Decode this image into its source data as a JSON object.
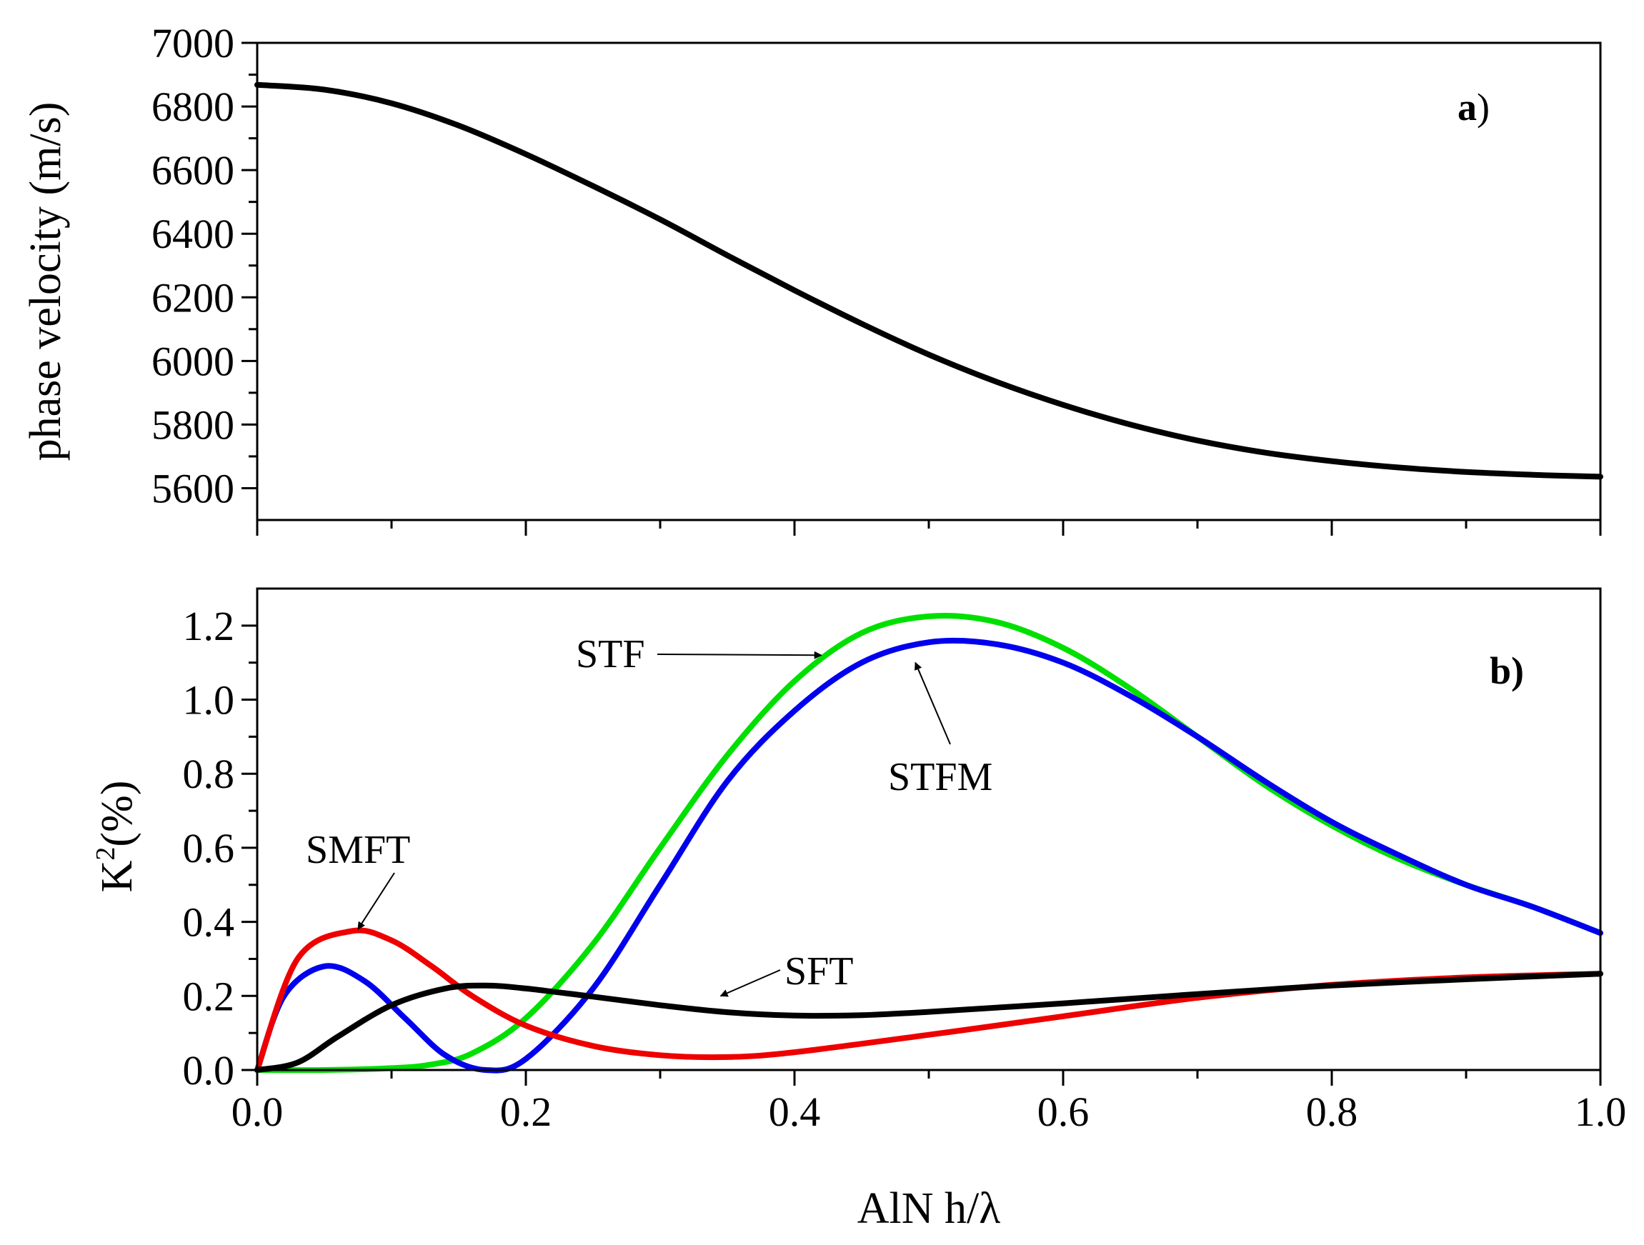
{
  "chart_data": [
    {
      "type": "line",
      "panel_label": "a",
      "panel_label_suffix": ")",
      "xlabel": "",
      "ylabel": "phase velocity (m/s)",
      "xlim": [
        0,
        1.0
      ],
      "ylim": [
        5500,
        7000
      ],
      "xticks": [
        0.0,
        0.2,
        0.4,
        0.6,
        0.8,
        1.0
      ],
      "show_x_tick_labels": false,
      "yticks": [
        5600,
        5800,
        6000,
        6200,
        6400,
        6600,
        6800,
        7000
      ],
      "y_tick_labels": [
        "5600",
        "5800",
        "6000",
        "6200",
        "6400",
        "6600",
        "6800",
        "7000"
      ],
      "series": [
        {
          "name": "phase velocity",
          "color": "#000000",
          "x": [
            0,
            0.05,
            0.1,
            0.15,
            0.2,
            0.25,
            0.3,
            0.35,
            0.4,
            0.45,
            0.5,
            0.55,
            0.6,
            0.65,
            0.7,
            0.75,
            0.8,
            0.85,
            0.9,
            0.95,
            1.0
          ],
          "y": [
            6868,
            6853,
            6810,
            6740,
            6650,
            6550,
            6445,
            6332,
            6222,
            6117,
            6020,
            5935,
            5862,
            5800,
            5750,
            5712,
            5685,
            5665,
            5651,
            5642,
            5636
          ]
        }
      ]
    },
    {
      "type": "line",
      "panel_label": "b",
      "panel_label_suffix": ")",
      "xlabel": "AlN h/λ",
      "ylabel_main": "K",
      "ylabel_sup": "2",
      "ylabel_rest": "(%)",
      "xlim": [
        0,
        1.0
      ],
      "ylim": [
        0,
        1.3
      ],
      "xticks": [
        0.0,
        0.2,
        0.4,
        0.6,
        0.8,
        1.0
      ],
      "x_tick_labels": [
        "0.0",
        "0.2",
        "0.4",
        "0.6",
        "0.8",
        "1.0"
      ],
      "yticks": [
        0.0,
        0.2,
        0.4,
        0.6,
        0.8,
        1.0,
        1.2
      ],
      "y_tick_labels": [
        "0.0",
        "0.2",
        "0.4",
        "0.6",
        "0.8",
        "1.0",
        "1.2"
      ],
      "series": [
        {
          "name": "STF",
          "color": "#00e000",
          "x": [
            0,
            0.05,
            0.1,
            0.13,
            0.16,
            0.2,
            0.25,
            0.3,
            0.35,
            0.4,
            0.45,
            0.5,
            0.55,
            0.6,
            0.65,
            0.7,
            0.75,
            0.8,
            0.85,
            0.9,
            0.95,
            1.0
          ],
          "y": [
            0,
            0,
            0.005,
            0.015,
            0.045,
            0.14,
            0.34,
            0.6,
            0.85,
            1.05,
            1.18,
            1.225,
            1.21,
            1.14,
            1.03,
            0.9,
            0.77,
            0.66,
            0.57,
            0.5,
            0.44,
            0.37
          ]
        },
        {
          "name": "STFM",
          "color": "#0000ee",
          "x": [
            0,
            0.02,
            0.05,
            0.08,
            0.11,
            0.14,
            0.17,
            0.2,
            0.25,
            0.3,
            0.35,
            0.4,
            0.45,
            0.5,
            0.55,
            0.6,
            0.65,
            0.7,
            0.75,
            0.8,
            0.85,
            0.9,
            0.95,
            1.0
          ],
          "y": [
            0,
            0.2,
            0.28,
            0.24,
            0.14,
            0.04,
            0.0,
            0.03,
            0.22,
            0.5,
            0.78,
            0.97,
            1.1,
            1.155,
            1.15,
            1.1,
            1.01,
            0.9,
            0.78,
            0.67,
            0.58,
            0.5,
            0.44,
            0.37
          ]
        },
        {
          "name": "SMFT",
          "color": "#ee0000",
          "x": [
            0,
            0.03,
            0.07,
            0.1,
            0.13,
            0.16,
            0.2,
            0.25,
            0.3,
            0.35,
            0.4,
            0.5,
            0.6,
            0.7,
            0.8,
            0.9,
            1.0
          ],
          "y": [
            0,
            0.3,
            0.375,
            0.35,
            0.28,
            0.2,
            0.12,
            0.065,
            0.04,
            0.035,
            0.048,
            0.095,
            0.145,
            0.195,
            0.23,
            0.25,
            0.26
          ]
        },
        {
          "name": "SFT",
          "color": "#000000",
          "x": [
            0,
            0.03,
            0.06,
            0.1,
            0.14,
            0.17,
            0.2,
            0.25,
            0.3,
            0.35,
            0.4,
            0.45,
            0.5,
            0.6,
            0.7,
            0.8,
            0.9,
            1.0
          ],
          "y": [
            0,
            0.02,
            0.09,
            0.175,
            0.22,
            0.228,
            0.22,
            0.198,
            0.175,
            0.156,
            0.147,
            0.148,
            0.157,
            0.18,
            0.205,
            0.228,
            0.245,
            0.26
          ]
        }
      ],
      "annotations": [
        {
          "text": "STF",
          "arrow_to": [
            0.42,
            1.12
          ]
        },
        {
          "text": "STFM",
          "arrow_to": [
            0.49,
            1.1
          ]
        },
        {
          "text": "SMFT",
          "arrow_to": [
            0.075,
            0.38
          ]
        },
        {
          "text": "SFT",
          "arrow_to": [
            0.345,
            0.2
          ]
        }
      ]
    }
  ]
}
